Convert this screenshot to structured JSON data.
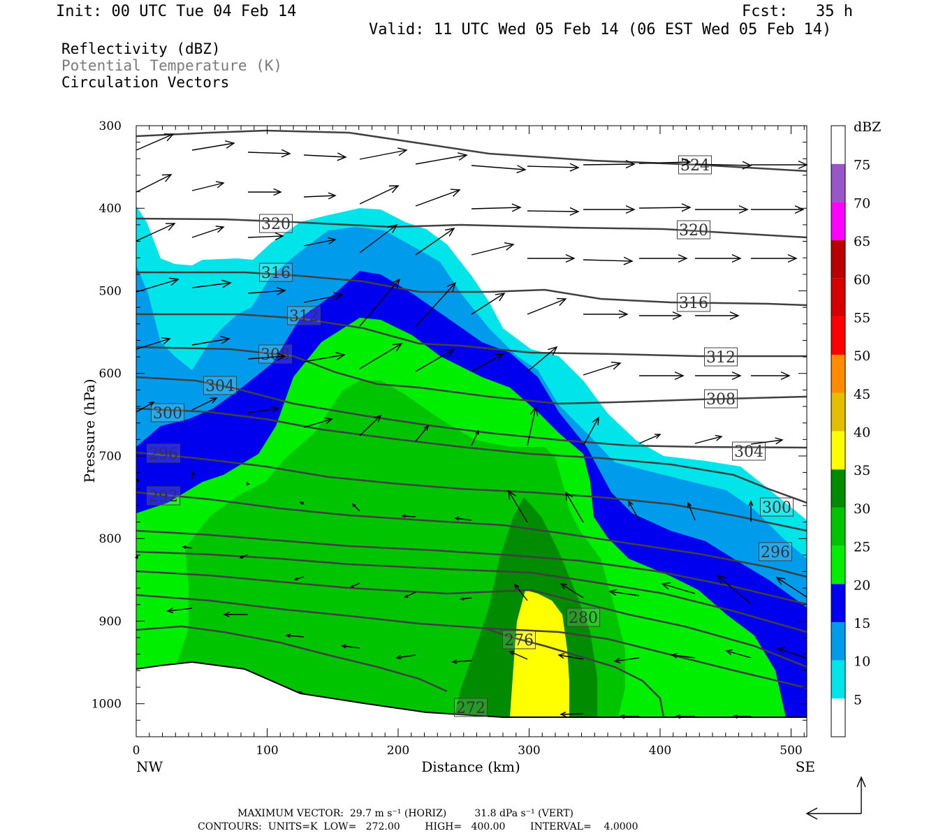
{
  "header": {
    "init": "Init: 00 UTC Tue 04 Feb 14",
    "fcst": "Fcst:   35 h",
    "valid": "Valid: 11 UTC Wed 05 Feb 14 (06 EST Wed 05 Feb 14)"
  },
  "legend": {
    "line1": "Reflectivity (dBZ)",
    "line2": "Potential Temperature (K)",
    "line3": "Circulation Vectors"
  },
  "footer": {
    "max_vector": "MAXIMUM VECTOR:  29.7 m s⁻¹ (HORIZ)         31.8 dPa s⁻¹ (VERT)",
    "contours": "CONTOURS:  UNITS=K  LOW=   272.00        HIGH=   400.00        INTERVAL=    4.0000"
  },
  "chart_data": {
    "type": "cross-section",
    "xlabel": "Distance (km)",
    "ylabel": "Pressure (hPa)",
    "x_ticks": [
      0,
      100,
      200,
      300,
      400,
      500
    ],
    "y_ticks": [
      300,
      400,
      500,
      600,
      700,
      800,
      900,
      1000
    ],
    "xlim": [
      0,
      512
    ],
    "ylim": [
      300,
      1040
    ],
    "endpoints": {
      "left": "NW",
      "right": "SE"
    },
    "colorbar": {
      "label": "dBZ",
      "ticks": [
        5,
        10,
        15,
        20,
        25,
        30,
        35,
        40,
        45,
        50,
        55,
        60,
        65,
        70,
        75
      ],
      "colors": [
        "#ffffff",
        "#00e4ea",
        "#009ceb",
        "#0000ee",
        "#00ee00",
        "#00c400",
        "#008b00",
        "#ffff00",
        "#e6be00",
        "#ff8c00",
        "#ff0000",
        "#d40000",
        "#b80000",
        "#ff00ff",
        "#9a55c8",
        "#ffffff"
      ]
    },
    "contour_labels": [
      "324",
      "320",
      "320",
      "316",
      "316",
      "312",
      "312",
      "308",
      "308",
      "304",
      "304",
      "300",
      "300",
      "296",
      "296",
      "292",
      "280",
      "276",
      "272"
    ],
    "contour_levels_k": [
      272,
      276,
      280,
      284,
      288,
      292,
      296,
      300,
      304,
      308,
      312,
      316,
      320,
      324
    ],
    "colors": {
      "contour": "#404040",
      "vector": "#000000"
    }
  }
}
